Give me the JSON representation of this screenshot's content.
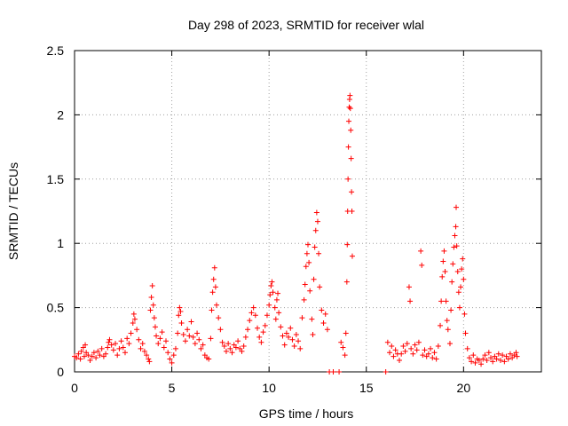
{
  "chart_data": {
    "type": "scatter",
    "title": "Day 298 of 2023, SRMTID for receiver wlal",
    "xlabel": "GPS time / hours",
    "ylabel": "SRMTID / TECUs",
    "xlim": [
      0,
      24
    ],
    "ylim": [
      0,
      2.5
    ],
    "x_ticks": [
      0,
      5,
      10,
      15,
      20
    ],
    "x_tick_labels": [
      "0",
      "5",
      "10",
      "15",
      "20"
    ],
    "y_ticks": [
      0,
      0.5,
      1,
      1.5,
      2,
      2.5
    ],
    "y_tick_labels": [
      "0",
      "0.5",
      "1",
      "1.5",
      "2",
      "2.5"
    ],
    "grid": true,
    "marker": "+",
    "series": [
      {
        "name": "SRMTID",
        "color": "#ff0000",
        "points": [
          [
            0.0,
            0.12
          ],
          [
            0.1,
            0.11
          ],
          [
            0.2,
            0.14
          ],
          [
            0.3,
            0.1
          ],
          [
            0.35,
            0.16
          ],
          [
            0.45,
            0.19
          ],
          [
            0.5,
            0.12
          ],
          [
            0.55,
            0.21
          ],
          [
            0.6,
            0.15
          ],
          [
            0.7,
            0.13
          ],
          [
            0.8,
            0.09
          ],
          [
            0.9,
            0.12
          ],
          [
            1.0,
            0.15
          ],
          [
            1.1,
            0.11
          ],
          [
            1.2,
            0.16
          ],
          [
            1.3,
            0.13
          ],
          [
            1.4,
            0.18
          ],
          [
            1.5,
            0.12
          ],
          [
            1.6,
            0.14
          ],
          [
            1.7,
            0.19
          ],
          [
            1.75,
            0.23
          ],
          [
            1.8,
            0.25
          ],
          [
            1.9,
            0.21
          ],
          [
            2.0,
            0.17
          ],
          [
            2.1,
            0.22
          ],
          [
            2.2,
            0.13
          ],
          [
            2.3,
            0.18
          ],
          [
            2.4,
            0.24
          ],
          [
            2.5,
            0.19
          ],
          [
            2.6,
            0.15
          ],
          [
            2.7,
            0.26
          ],
          [
            2.8,
            0.22
          ],
          [
            2.9,
            0.3
          ],
          [
            3.0,
            0.38
          ],
          [
            3.05,
            0.45
          ],
          [
            3.1,
            0.41
          ],
          [
            3.2,
            0.33
          ],
          [
            3.3,
            0.25
          ],
          [
            3.4,
            0.18
          ],
          [
            3.5,
            0.22
          ],
          [
            3.6,
            0.16
          ],
          [
            3.7,
            0.13
          ],
          [
            3.8,
            0.1
          ],
          [
            3.85,
            0.08
          ],
          [
            3.9,
            0.48
          ],
          [
            3.95,
            0.58
          ],
          [
            4.0,
            0.67
          ],
          [
            4.05,
            0.52
          ],
          [
            4.1,
            0.42
          ],
          [
            4.15,
            0.35
          ],
          [
            4.2,
            0.28
          ],
          [
            4.3,
            0.22
          ],
          [
            4.4,
            0.26
          ],
          [
            4.5,
            0.31
          ],
          [
            4.6,
            0.19
          ],
          [
            4.7,
            0.24
          ],
          [
            4.8,
            0.15
          ],
          [
            4.9,
            0.1
          ],
          [
            5.0,
            0.07
          ],
          [
            5.1,
            0.13
          ],
          [
            5.2,
            0.18
          ],
          [
            5.3,
            0.3
          ],
          [
            5.35,
            0.44
          ],
          [
            5.4,
            0.5
          ],
          [
            5.45,
            0.47
          ],
          [
            5.5,
            0.38
          ],
          [
            5.6,
            0.29
          ],
          [
            5.7,
            0.24
          ],
          [
            5.8,
            0.33
          ],
          [
            5.9,
            0.28
          ],
          [
            6.0,
            0.39
          ],
          [
            6.1,
            0.27
          ],
          [
            6.2,
            0.22
          ],
          [
            6.3,
            0.3
          ],
          [
            6.4,
            0.25
          ],
          [
            6.5,
            0.18
          ],
          [
            6.6,
            0.21
          ],
          [
            6.7,
            0.13
          ],
          [
            6.8,
            0.11
          ],
          [
            6.9,
            0.1
          ],
          [
            7.0,
            0.26
          ],
          [
            7.05,
            0.48
          ],
          [
            7.1,
            0.62
          ],
          [
            7.15,
            0.72
          ],
          [
            7.2,
            0.81
          ],
          [
            7.25,
            0.66
          ],
          [
            7.3,
            0.52
          ],
          [
            7.4,
            0.42
          ],
          [
            7.5,
            0.33
          ],
          [
            7.6,
            0.23
          ],
          [
            7.7,
            0.2
          ],
          [
            7.8,
            0.16
          ],
          [
            7.9,
            0.22
          ],
          [
            8.0,
            0.18
          ],
          [
            8.1,
            0.15
          ],
          [
            8.2,
            0.21
          ],
          [
            8.3,
            0.19
          ],
          [
            8.4,
            0.24
          ],
          [
            8.5,
            0.18
          ],
          [
            8.6,
            0.16
          ],
          [
            8.7,
            0.2
          ],
          [
            8.8,
            0.27
          ],
          [
            8.9,
            0.33
          ],
          [
            9.0,
            0.4
          ],
          [
            9.1,
            0.46
          ],
          [
            9.2,
            0.5
          ],
          [
            9.3,
            0.44
          ],
          [
            9.4,
            0.34
          ],
          [
            9.5,
            0.27
          ],
          [
            9.6,
            0.23
          ],
          [
            9.7,
            0.31
          ],
          [
            9.8,
            0.36
          ],
          [
            9.9,
            0.44
          ],
          [
            10.0,
            0.52
          ],
          [
            10.05,
            0.6
          ],
          [
            10.1,
            0.67
          ],
          [
            10.15,
            0.7
          ],
          [
            10.2,
            0.62
          ],
          [
            10.3,
            0.5
          ],
          [
            10.35,
            0.41
          ],
          [
            10.4,
            0.56
          ],
          [
            10.45,
            0.61
          ],
          [
            10.5,
            0.46
          ],
          [
            10.6,
            0.35
          ],
          [
            10.7,
            0.28
          ],
          [
            10.8,
            0.21
          ],
          [
            10.9,
            0.3
          ],
          [
            11.0,
            0.27
          ],
          [
            11.1,
            0.34
          ],
          [
            11.2,
            0.25
          ],
          [
            11.3,
            0.2
          ],
          [
            11.4,
            0.29
          ],
          [
            11.5,
            0.24
          ],
          [
            11.6,
            0.18
          ],
          [
            11.7,
            0.42
          ],
          [
            11.8,
            0.56
          ],
          [
            11.85,
            0.68
          ],
          [
            11.9,
            0.82
          ],
          [
            11.95,
            0.92
          ],
          [
            12.0,
            0.99
          ],
          [
            12.05,
            0.85
          ],
          [
            12.1,
            0.63
          ],
          [
            12.2,
            0.41
          ],
          [
            12.25,
            0.29
          ],
          [
            12.3,
            0.72
          ],
          [
            12.35,
            0.97
          ],
          [
            12.4,
            1.1
          ],
          [
            12.45,
            1.24
          ],
          [
            12.5,
            1.17
          ],
          [
            12.55,
            0.92
          ],
          [
            12.6,
            0.66
          ],
          [
            12.7,
            0.48
          ],
          [
            12.8,
            0.38
          ],
          [
            12.9,
            0.45
          ],
          [
            13.0,
            0.33
          ],
          [
            13.1,
            0.0
          ],
          [
            13.3,
            0.0
          ],
          [
            13.6,
            0.0
          ],
          [
            13.7,
            0.23
          ],
          [
            13.8,
            0.19
          ],
          [
            13.9,
            0.13
          ],
          [
            13.95,
            0.3
          ],
          [
            14.0,
            0.7
          ],
          [
            14.02,
            0.99
          ],
          [
            14.04,
            1.25
          ],
          [
            14.06,
            1.5
          ],
          [
            14.08,
            1.75
          ],
          [
            14.1,
            1.95
          ],
          [
            14.12,
            2.06
          ],
          [
            14.14,
            2.12
          ],
          [
            14.16,
            2.15
          ],
          [
            14.18,
            2.05
          ],
          [
            14.2,
            1.88
          ],
          [
            14.22,
            1.66
          ],
          [
            14.24,
            1.4
          ],
          [
            14.26,
            1.25
          ],
          [
            14.28,
            0.9
          ],
          [
            16.0,
            0.0
          ],
          [
            16.1,
            0.23
          ],
          [
            16.2,
            0.15
          ],
          [
            16.3,
            0.2
          ],
          [
            16.4,
            0.12
          ],
          [
            16.5,
            0.17
          ],
          [
            16.6,
            0.14
          ],
          [
            16.7,
            0.09
          ],
          [
            16.8,
            0.14
          ],
          [
            16.9,
            0.2
          ],
          [
            17.0,
            0.16
          ],
          [
            17.1,
            0.22
          ],
          [
            17.2,
            0.66
          ],
          [
            17.25,
            0.55
          ],
          [
            17.3,
            0.18
          ],
          [
            17.4,
            0.14
          ],
          [
            17.5,
            0.21
          ],
          [
            17.6,
            0.17
          ],
          [
            17.7,
            0.23
          ],
          [
            17.8,
            0.94
          ],
          [
            17.85,
            0.83
          ],
          [
            17.9,
            0.13
          ],
          [
            18.0,
            0.17
          ],
          [
            18.1,
            0.12
          ],
          [
            18.2,
            0.14
          ],
          [
            18.3,
            0.18
          ],
          [
            18.4,
            0.11
          ],
          [
            18.5,
            0.15
          ],
          [
            18.6,
            0.1
          ],
          [
            18.7,
            0.2
          ],
          [
            18.8,
            0.36
          ],
          [
            18.85,
            0.55
          ],
          [
            18.9,
            0.74
          ],
          [
            18.95,
            0.86
          ],
          [
            19.0,
            0.94
          ],
          [
            19.05,
            0.78
          ],
          [
            19.1,
            0.55
          ],
          [
            19.15,
            0.4
          ],
          [
            19.2,
            0.33
          ],
          [
            19.3,
            0.22
          ],
          [
            19.35,
            0.48
          ],
          [
            19.4,
            0.7
          ],
          [
            19.45,
            0.84
          ],
          [
            19.5,
            0.97
          ],
          [
            19.55,
            1.06
          ],
          [
            19.6,
            1.13
          ],
          [
            19.62,
            1.28
          ],
          [
            19.65,
            0.98
          ],
          [
            19.7,
            0.78
          ],
          [
            19.75,
            0.62
          ],
          [
            19.8,
            0.5
          ],
          [
            19.85,
            0.66
          ],
          [
            19.9,
            0.8
          ],
          [
            19.95,
            0.88
          ],
          [
            20.0,
            0.72
          ],
          [
            20.05,
            0.45
          ],
          [
            20.1,
            0.3
          ],
          [
            20.2,
            0.18
          ],
          [
            20.3,
            0.11
          ],
          [
            20.4,
            0.08
          ],
          [
            20.5,
            0.13
          ],
          [
            20.6,
            0.07
          ],
          [
            20.7,
            0.1
          ],
          [
            20.8,
            0.09
          ],
          [
            20.9,
            0.06
          ],
          [
            21.0,
            0.1
          ],
          [
            21.1,
            0.13
          ],
          [
            21.2,
            0.09
          ],
          [
            21.3,
            0.15
          ],
          [
            21.4,
            0.11
          ],
          [
            21.5,
            0.08
          ],
          [
            21.6,
            0.12
          ],
          [
            21.7,
            0.1
          ],
          [
            21.8,
            0.14
          ],
          [
            21.9,
            0.09
          ],
          [
            22.0,
            0.13
          ],
          [
            22.1,
            0.08
          ],
          [
            22.2,
            0.12
          ],
          [
            22.3,
            0.1
          ],
          [
            22.4,
            0.14
          ],
          [
            22.5,
            0.11
          ],
          [
            22.6,
            0.13
          ],
          [
            22.7,
            0.15
          ],
          [
            22.75,
            0.12
          ]
        ]
      }
    ]
  }
}
